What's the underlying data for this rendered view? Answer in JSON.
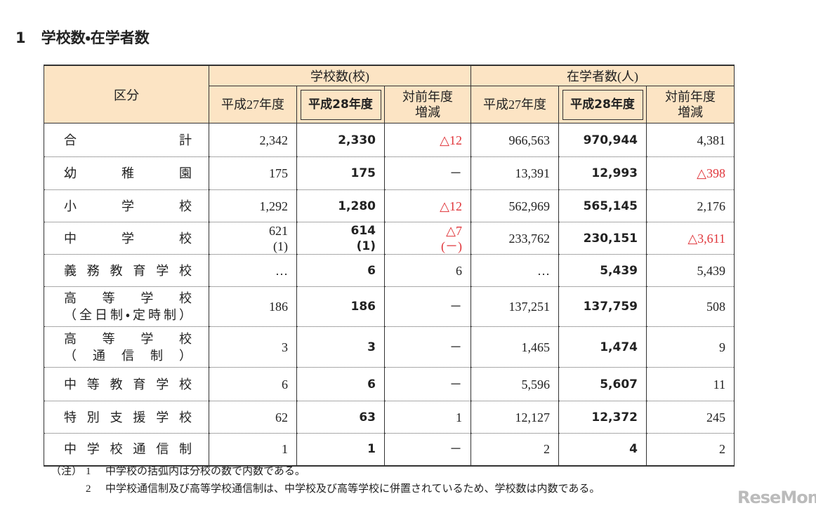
{
  "header": {
    "number": "1",
    "title": "学校数・在学者数"
  },
  "table": {
    "corner": "区分",
    "groups": [
      "学校数(校)",
      "在学者数(人)"
    ],
    "subheads": [
      [
        "平成27年度"
      ],
      [
        "平成28年度"
      ],
      [
        "対前年度",
        "増減"
      ],
      [
        "平成27年度"
      ],
      [
        "平成28年度"
      ],
      [
        "対前年度",
        "増減"
      ]
    ],
    "rows": [
      {
        "label": [
          "合計"
        ],
        "cells": [
          [
            "2,342"
          ],
          [
            "2,330"
          ],
          [
            "△12"
          ],
          [
            "966,563"
          ],
          [
            "970,944"
          ],
          [
            "4,381"
          ]
        ]
      },
      {
        "label": [
          "幼稚園"
        ],
        "cells": [
          [
            "175"
          ],
          [
            "175"
          ],
          [
            "－"
          ],
          [
            "13,391"
          ],
          [
            "12,993"
          ],
          [
            "△398"
          ]
        ]
      },
      {
        "label": [
          "小学校"
        ],
        "cells": [
          [
            "1,292"
          ],
          [
            "1,280"
          ],
          [
            "△12"
          ],
          [
            "562,969"
          ],
          [
            "565,145"
          ],
          [
            "2,176"
          ]
        ]
      },
      {
        "label": [
          "中学校"
        ],
        "cells": [
          [
            "621",
            "(1)"
          ],
          [
            "614",
            "(1)"
          ],
          [
            "△7",
            "(－)"
          ],
          [
            "233,762"
          ],
          [
            "230,151"
          ],
          [
            "△3,611"
          ]
        ]
      },
      {
        "label": [
          "義務教育学校"
        ],
        "cells": [
          [
            "…"
          ],
          [
            "6"
          ],
          [
            "6"
          ],
          [
            "…"
          ],
          [
            "5,439"
          ],
          [
            "5,439"
          ]
        ]
      },
      {
        "label": [
          "高等学校",
          "（全日制・定時制）"
        ],
        "cells": [
          [
            "186"
          ],
          [
            "186"
          ],
          [
            "－"
          ],
          [
            "137,251"
          ],
          [
            "137,759"
          ],
          [
            "508"
          ]
        ]
      },
      {
        "label": [
          "高等学校",
          "（通信制）"
        ],
        "cells": [
          [
            "3"
          ],
          [
            "3"
          ],
          [
            "－"
          ],
          [
            "1,465"
          ],
          [
            "1,474"
          ],
          [
            "9"
          ]
        ]
      },
      {
        "label": [
          "中等教育学校"
        ],
        "cells": [
          [
            "6"
          ],
          [
            "6"
          ],
          [
            "－"
          ],
          [
            "5,596"
          ],
          [
            "5,607"
          ],
          [
            "11"
          ]
        ]
      },
      {
        "label": [
          "特別支援学校"
        ],
        "cells": [
          [
            "62"
          ],
          [
            "63"
          ],
          [
            "1"
          ],
          [
            "12,127"
          ],
          [
            "12,372"
          ],
          [
            "245"
          ]
        ]
      },
      {
        "label": [
          "中学校通信制"
        ],
        "cells": [
          [
            "1"
          ],
          [
            "1"
          ],
          [
            "－"
          ],
          [
            "2"
          ],
          [
            "4"
          ],
          [
            "2"
          ]
        ]
      }
    ]
  },
  "notes": {
    "prefix": "（注）",
    "items": [
      {
        "number": "1",
        "text": "中学校の括弧内は分校の数で内数である。"
      },
      {
        "number": "2",
        "text": "中学校通信制及び高等学校通信制は、中学校及び高等学校に併置されているため、学校数は内数である。"
      }
    ]
  },
  "logo": "ReseMom"
}
